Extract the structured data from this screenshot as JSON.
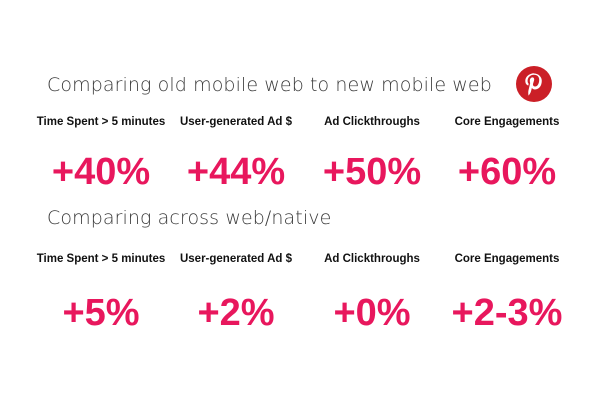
{
  "accent_color": "#e8175d",
  "brand_color": "#cb1f27",
  "logo": {
    "icon": "pinterest-logo-icon"
  },
  "sections": [
    {
      "title": "Comparing old mobile web to new mobile web",
      "metrics": [
        {
          "label": "Time Spent > 5 minutes",
          "value": "+40%"
        },
        {
          "label": "User-generated Ad $",
          "value": "+44%"
        },
        {
          "label": "Ad Clickthroughs",
          "value": "+50%"
        },
        {
          "label": "Core Engagements",
          "value": "+60%"
        }
      ]
    },
    {
      "title": "Comparing across web/native",
      "metrics": [
        {
          "label": "Time Spent > 5 minutes",
          "value": "+5%"
        },
        {
          "label": "User-generated Ad $",
          "value": "+2%"
        },
        {
          "label": "Ad Clickthroughs",
          "value": "+0%"
        },
        {
          "label": "Core Engagements",
          "value": "+2-3%"
        }
      ]
    }
  ]
}
